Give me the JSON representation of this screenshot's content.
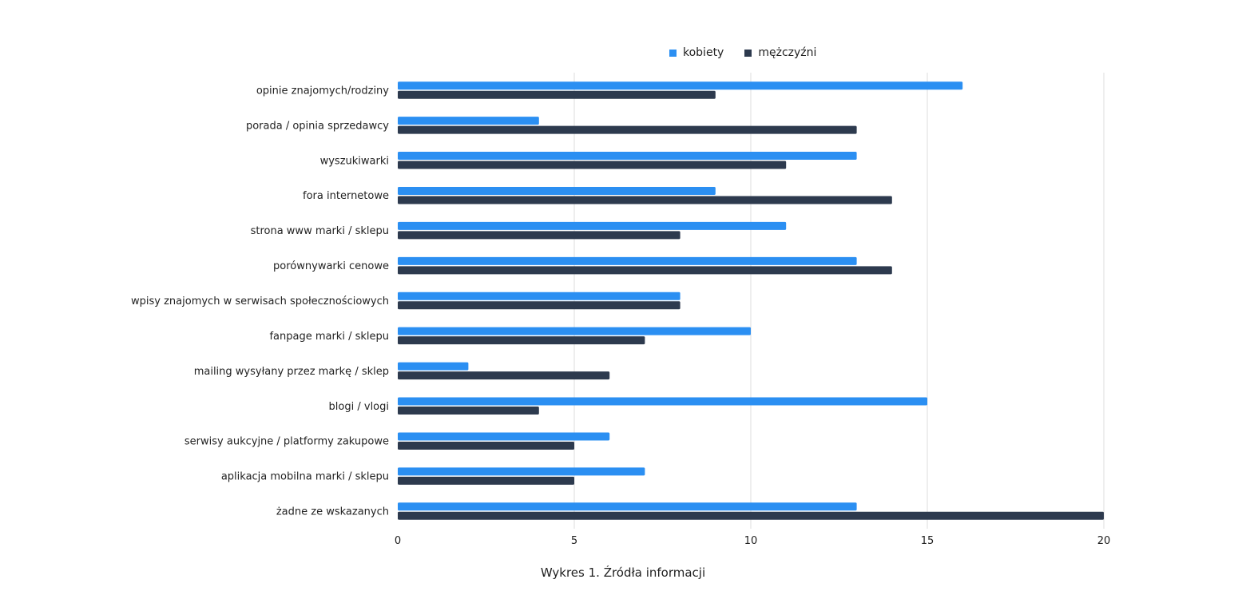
{
  "colors": {
    "kobiety": "#2b8ff2",
    "mezczyzni": "#2d3a4e",
    "grid": "#dddddd"
  },
  "legend": {
    "kobiety": "kobiety",
    "mezczyzni": "mężczyźni"
  },
  "caption": "Wykres 1. Źródła informacji",
  "chart_data": {
    "type": "bar",
    "orientation": "horizontal",
    "categories": [
      "opinie znajomych/rodziny",
      "porada / opinia sprzedawcy",
      "wyszukiwarki",
      "fora internetowe",
      "strona www marki / sklepu",
      "porównywarki cenowe",
      "wpisy znajomych w serwisach społecznościowych",
      "fanpage marki / sklepu",
      "mailing wysyłany przez markę / sklep",
      "blogi / vlogi",
      "serwisy aukcyjne / platformy zakupowe",
      "aplikacja mobilna marki / sklepu",
      "żadne ze wskazanych"
    ],
    "series": [
      {
        "name": "kobiety",
        "values": [
          16,
          4,
          13,
          9,
          11,
          13,
          8,
          10,
          2,
          15,
          6,
          7,
          13
        ]
      },
      {
        "name": "mężczyźni",
        "values": [
          9,
          13,
          11,
          14,
          8,
          14,
          8,
          7,
          6,
          4,
          5,
          5,
          20
        ]
      }
    ],
    "xlim": [
      0,
      20
    ],
    "xticks": [
      0,
      5,
      10,
      15,
      20
    ],
    "grid": true,
    "legend_position": "top"
  }
}
